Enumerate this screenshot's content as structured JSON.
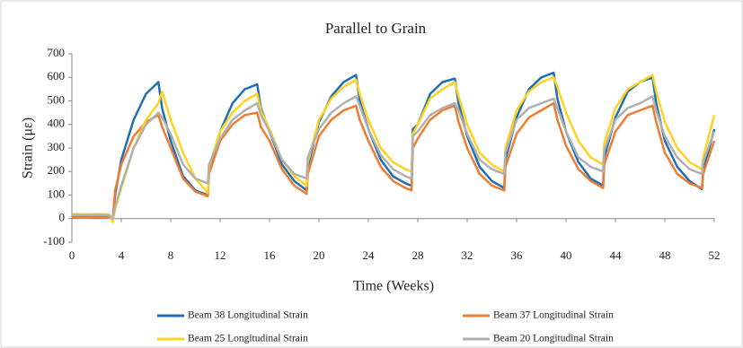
{
  "chart_data": {
    "type": "line",
    "title": "Parallel to Grain",
    "x_label": "Time (Weeks)",
    "y_label": "Strain (με)",
    "x": [
      0,
      1,
      2,
      3,
      3.3,
      3.5,
      4,
      5,
      6,
      7,
      7.3,
      8,
      9,
      10,
      11,
      11.1,
      12,
      13,
      14,
      15,
      15.3,
      16,
      17,
      18,
      19,
      19.1,
      20,
      21,
      22,
      23,
      23.3,
      24,
      25,
      26,
      27,
      27.5,
      27.6,
      28,
      29,
      30,
      31,
      31.3,
      32,
      33,
      34,
      35,
      35.1,
      36,
      37,
      38,
      39,
      39.3,
      40,
      41,
      42,
      43,
      43.1,
      44,
      45,
      46,
      47,
      47.3,
      48,
      49,
      50,
      51,
      51.1,
      52
    ],
    "series": [
      {
        "name": "Beam 38 Longitudinal Strain",
        "color": "#1f6fb5",
        "values": [
          10,
          12,
          10,
          12,
          -5,
          100,
          250,
          420,
          530,
          580,
          470,
          330,
          180,
          120,
          100,
          200,
          370,
          490,
          550,
          570,
          470,
          370,
          230,
          160,
          120,
          220,
          410,
          520,
          580,
          610,
          500,
          380,
          250,
          180,
          150,
          140,
          380,
          400,
          530,
          580,
          595,
          490,
          350,
          220,
          160,
          130,
          250,
          430,
          550,
          600,
          620,
          510,
          370,
          240,
          170,
          140,
          260,
          430,
          540,
          580,
          600,
          490,
          330,
          220,
          160,
          125,
          200,
          380
        ]
      },
      {
        "name": "Beam 37 Longitudinal Strain",
        "color": "#ed7d31",
        "values": [
          5,
          8,
          5,
          8,
          -5,
          120,
          230,
          350,
          410,
          440,
          390,
          300,
          170,
          115,
          95,
          190,
          330,
          400,
          440,
          450,
          390,
          330,
          210,
          140,
          105,
          190,
          350,
          420,
          460,
          480,
          420,
          330,
          220,
          160,
          130,
          120,
          300,
          340,
          420,
          460,
          480,
          410,
          300,
          190,
          140,
          120,
          220,
          360,
          430,
          460,
          490,
          420,
          310,
          210,
          160,
          130,
          230,
          370,
          440,
          460,
          480,
          410,
          280,
          190,
          150,
          130,
          190,
          330
        ]
      },
      {
        "name": "Beam 25 Longitudinal Strain",
        "color": "#ffd21f",
        "values": [
          20,
          18,
          20,
          18,
          -15,
          40,
          130,
          300,
          420,
          490,
          540,
          420,
          280,
          170,
          110,
          220,
          370,
          450,
          500,
          530,
          460,
          380,
          250,
          180,
          140,
          240,
          420,
          510,
          560,
          590,
          530,
          420,
          300,
          240,
          210,
          200,
          360,
          400,
          510,
          550,
          580,
          520,
          400,
          280,
          230,
          200,
          300,
          460,
          540,
          580,
          600,
          560,
          450,
          330,
          260,
          230,
          320,
          470,
          550,
          580,
          610,
          540,
          410,
          300,
          240,
          210,
          260,
          440
        ]
      },
      {
        "name": "Beam 20 Longitudinal Strain",
        "color": "#b0b0b0",
        "values": [
          15,
          15,
          15,
          15,
          0,
          50,
          140,
          300,
          400,
          450,
          430,
          360,
          230,
          170,
          150,
          230,
          340,
          420,
          460,
          490,
          440,
          370,
          250,
          190,
          170,
          260,
          380,
          450,
          490,
          520,
          480,
          380,
          270,
          210,
          180,
          170,
          350,
          370,
          440,
          470,
          490,
          460,
          360,
          250,
          210,
          190,
          280,
          420,
          470,
          490,
          510,
          470,
          370,
          260,
          220,
          200,
          290,
          420,
          470,
          490,
          520,
          460,
          350,
          260,
          210,
          190,
          240,
          370
        ]
      }
    ],
    "xlim": [
      0,
      52
    ],
    "xticks": [
      0,
      4,
      8,
      12,
      16,
      20,
      24,
      28,
      32,
      36,
      40,
      44,
      48,
      52
    ],
    "ylim": [
      -100,
      700
    ],
    "yticks": [
      -100,
      0,
      100,
      200,
      300,
      400,
      500,
      600,
      700
    ],
    "grid": false,
    "legend": "bottom"
  }
}
